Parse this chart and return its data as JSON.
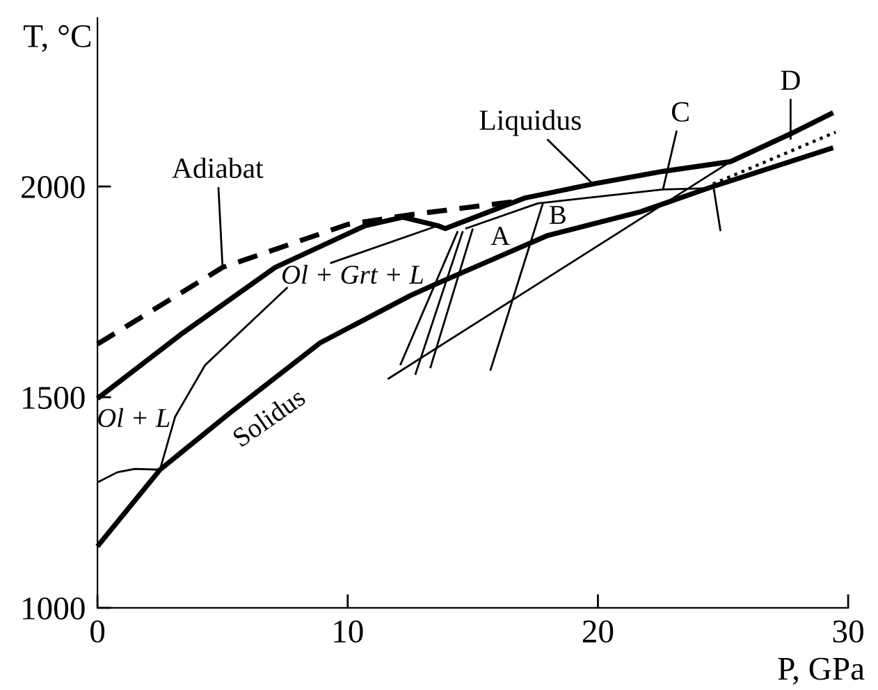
{
  "chart_data": {
    "type": "line",
    "xlabel": "P, GPa",
    "ylabel": "T, °C",
    "xlim": [
      0,
      30
    ],
    "ylim": [
      1000,
      2400
    ],
    "xticks": [
      0,
      10,
      20,
      30
    ],
    "yticks": [
      1000,
      1500,
      2000
    ],
    "grid": false,
    "marker": "none",
    "series": [
      {
        "color": "#000000",
        "line_style": "solid",
        "x": [
          0,
          2.5,
          5.3,
          8.9,
          12.5,
          13.5,
          18.0,
          21.7,
          24.6,
          29.4
        ],
        "values": [
          1146,
          1328,
          1463,
          1629,
          1741,
          1768,
          1884,
          1940,
          2000,
          2092
        ]
      },
      {
        "color": "#000000",
        "line_style": "solid",
        "x": [
          0,
          3.4,
          7.1,
          10.7,
          12.2,
          13.6,
          13.9,
          17.1,
          19.8,
          22.6,
          25.3,
          27.7,
          29.4
        ],
        "values": [
          1497,
          1652,
          1808,
          1907,
          1927,
          1907,
          1900,
          1973,
          2006,
          2036,
          2059,
          2125,
          2175
        ]
      },
      {
        "color": "#000000",
        "line_style": "dashed",
        "x": [
          0,
          5.0,
          10.0,
          12.5,
          16.9
        ],
        "values": [
          1626,
          1808,
          1910,
          1933,
          1966
        ]
      },
      {
        "color": "#000000",
        "line_style": "dotted",
        "x": [
          24.6,
          29.5
        ],
        "values": [
          2006,
          2129
        ]
      },
      {
        "color": "#000000",
        "line_style": "solid",
        "x": [
          2.5,
          3.1,
          4.3,
          7.6
        ],
        "values": [
          1328,
          1453,
          1576,
          1761
        ]
      },
      {
        "color": "#000000",
        "line_style": "solid",
        "x": [
          9.3,
          13.6
        ],
        "values": [
          1818,
          1907
        ]
      },
      {
        "color": "#000000",
        "line_style": "solid",
        "x": [
          0,
          0.8,
          1.5,
          2.5
        ],
        "values": [
          1298,
          1322,
          1330,
          1328
        ]
      },
      {
        "color": "#000000",
        "line_style": "solid",
        "x": [
          14.7,
          17.6,
          22.6,
          24.6
        ],
        "values": [
          1900,
          1960,
          1993,
          1996
        ]
      },
      {
        "color": "#000000",
        "line_style": "solid",
        "x": [
          14.4,
          12.1
        ],
        "values": [
          1894,
          1576
        ]
      },
      {
        "color": "#000000",
        "line_style": "solid",
        "x": [
          14.6,
          12.7
        ],
        "values": [
          1894,
          1553
        ]
      },
      {
        "color": "#000000",
        "line_style": "solid",
        "x": [
          15.0,
          13.3
        ],
        "values": [
          1900,
          1569
        ]
      },
      {
        "color": "#000000",
        "line_style": "solid",
        "x": [
          17.8,
          15.7
        ],
        "values": [
          1960,
          1563
        ]
      },
      {
        "color": "#000000",
        "line_style": "solid",
        "x": [
          11.6,
          25.3
        ],
        "values": [
          1543,
          2059
        ]
      },
      {
        "color": "#000000",
        "line_style": "solid",
        "x": [
          24.6,
          24.9
        ],
        "values": [
          2006,
          1894
        ]
      }
    ],
    "annotations": [
      {
        "text": "Adiabat",
        "x": 5.0,
        "y": 1808
      },
      {
        "text": "Liquidus",
        "x": 19.8,
        "y": 2006
      },
      {
        "text": "C",
        "x": 22.6,
        "y": 1993
      },
      {
        "text": "D",
        "x": 27.7,
        "y": 2113
      },
      "A",
      "B",
      "Ol + L",
      "Ol + Grt + L",
      "Solidus"
    ]
  }
}
